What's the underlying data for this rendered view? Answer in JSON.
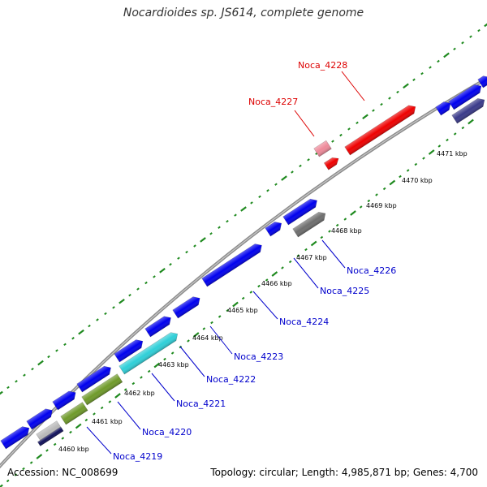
{
  "title": "Nocardioides sp. JS614, complete genome",
  "footer": {
    "accession": "Accession: NC_008699",
    "summary": "Topology: circular; Length: 4,985,871 bp; Genes: 4,700"
  },
  "colors": {
    "blue": "#0000ee",
    "red": "#ee0000",
    "pink": "#ee8a9a",
    "gray": "#6e6e6e",
    "navy": "#3a3a8a",
    "cyan": "#2fcfd8",
    "olive": "#6f9a2a",
    "backbone": "#8c8c8c",
    "ruler": "#1f8a1f",
    "label_blue": "#0000cc",
    "label_red": "#dd0000"
  },
  "ticks": [
    {
      "label": "4460 kbp"
    },
    {
      "label": "4461 kbp"
    },
    {
      "label": "4462 kbp"
    },
    {
      "label": "4463 kbp"
    },
    {
      "label": "4464 kbp"
    },
    {
      "label": "4465 kbp"
    },
    {
      "label": "4466 kbp"
    },
    {
      "label": "4467 kbp"
    },
    {
      "label": "4468 kbp"
    },
    {
      "label": "4469 kbp"
    },
    {
      "label": "4470 kbp"
    },
    {
      "label": "4471 kbp"
    }
  ],
  "gene_labels": [
    {
      "name": "Noca_4219"
    },
    {
      "name": "Noca_4220"
    },
    {
      "name": "Noca_4221"
    },
    {
      "name": "Noca_4222"
    },
    {
      "name": "Noca_4223"
    },
    {
      "name": "Noca_4224"
    },
    {
      "name": "Noca_4225"
    },
    {
      "name": "Noca_4226"
    },
    {
      "name": "Noca_4227"
    },
    {
      "name": "Noca_4228"
    }
  ]
}
